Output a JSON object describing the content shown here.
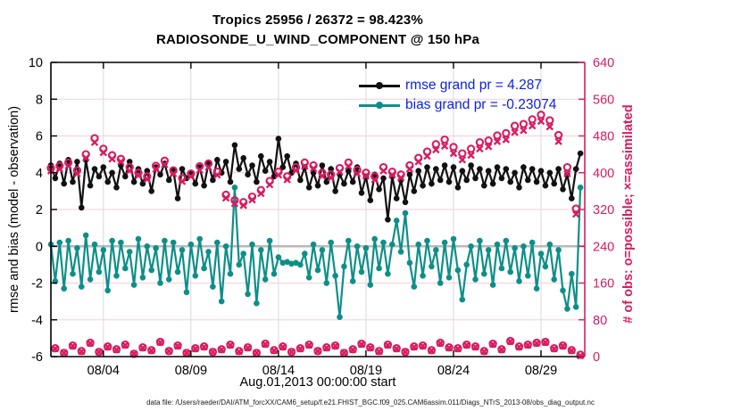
{
  "header": {
    "title_line1": "Tropics 25956 / 26372 = 98.423%",
    "title_line2": "RADIOSONDE_U_WIND_COMPONENT @ 150 hPa"
  },
  "legend": {
    "text_color": "#0a1fe8",
    "items": [
      {
        "label": "rmse grand pr = 4.287",
        "sample_color": "#111111"
      },
      {
        "label": "bias grand pr = -0.23074",
        "sample_color": "#0d8f89"
      }
    ]
  },
  "footer": {
    "data_file": "data file: /Users/raeder/DAI/ATM_forcXX/CAM6_setup/f.e21.FHIST_BGC.f09_025.CAM6assim.011/Diags_NTrS_2013-08/obs_diag_output.nc"
  },
  "colors": {
    "rmse_line": "#111111",
    "bias_line": "#0d8f89",
    "counts": "#d81b60",
    "zero_line": "#b9b9b9",
    "grid_vertical": "#d9d9d9",
    "grid_horizontal_pink": "#f6cdd9",
    "axis_black": "#000000"
  },
  "chart_data": {
    "type": "line",
    "title": "Tropics 25956 / 26372 = 98.423%",
    "subtitle": "RADIOSONDE_U_WIND_COMPONENT @ 150 hPa",
    "xlabel": "Aug.01,2013 00:00:00 start",
    "ylabel_left": "rmse and bias (model - observation)",
    "ylabel_right": "# of obs: o=possible; ×=assimilated",
    "ylim_left": [
      -6,
      10
    ],
    "ylim_right": [
      0,
      640
    ],
    "x_range_days": [
      1,
      31.5
    ],
    "left_ticks": [
      10,
      8,
      6,
      4,
      2,
      0,
      -2,
      -4,
      -6
    ],
    "right_ticks": [
      640,
      560,
      480,
      400,
      320,
      240,
      160,
      80,
      0
    ],
    "x_ticks": [
      {
        "day": 4,
        "label": "08/04"
      },
      {
        "day": 9,
        "label": "08/09"
      },
      {
        "day": 14,
        "label": "08/14"
      },
      {
        "day": 19,
        "label": "08/19"
      },
      {
        "day": 24,
        "label": "08/24"
      },
      {
        "day": 29,
        "label": "08/29"
      }
    ],
    "grid_pink_left_values": [
      8,
      6,
      4,
      2,
      -2,
      -4
    ],
    "zero_line_left_value": 0,
    "x_days_start": 1.0,
    "x_days_step": 0.25,
    "n_points": 122,
    "series": [
      {
        "name": "rmse",
        "axis": "left",
        "style": "line+dot",
        "color": "#111111",
        "grand_value": 4.287,
        "values": [
          4.4,
          3.7,
          4.5,
          3.4,
          4.7,
          3.5,
          4.6,
          2.1,
          4.7,
          3.3,
          4.2,
          3.8,
          4.3,
          3.5,
          4.0,
          3.2,
          4.4,
          3.8,
          4.6,
          3.5,
          4.2,
          3.4,
          4.1,
          3.0,
          4.3,
          3.9,
          4.5,
          3.6,
          4.1,
          2.6,
          4.2,
          3.7,
          4.0,
          3.4,
          4.3,
          3.3,
          4.5,
          3.6,
          4.7,
          4.0,
          4.6,
          3.5,
          5.5,
          4.2,
          4.8,
          3.9,
          4.4,
          3.5,
          4.9,
          4.1,
          4.6,
          3.8,
          5.85,
          4.3,
          4.9,
          4.0,
          4.5,
          3.6,
          4.3,
          3.2,
          4.0,
          3.3,
          4.4,
          3.5,
          4.2,
          3.0,
          3.9,
          3.4,
          4.1,
          3.5,
          4.3,
          2.9,
          3.8,
          2.5,
          3.9,
          3.1,
          3.7,
          1.45,
          3.8,
          2.6,
          3.6,
          2.4,
          3.9,
          3.0,
          4.1,
          3.3,
          4.3,
          3.4,
          4.2,
          3.6,
          4.4,
          3.5,
          4.3,
          3.2,
          4.1,
          3.6,
          4.4,
          3.7,
          4.2,
          3.3,
          4.1,
          3.4,
          4.3,
          3.7,
          4.2,
          3.5,
          4.0,
          3.2,
          4.3,
          3.6,
          4.2,
          3.5,
          4.1,
          3.3,
          4.0,
          3.4,
          4.2,
          3.1,
          3.9,
          2.6,
          4.2,
          5.05
        ]
      },
      {
        "name": "bias",
        "axis": "left",
        "style": "line+dot",
        "color": "#0d8f89",
        "grand_value": -0.23074,
        "values": [
          0.1,
          -1.9,
          0.2,
          -2.3,
          0.3,
          -1.5,
          -0.1,
          -2.2,
          0.6,
          -1.8,
          0.1,
          -1.4,
          -0.2,
          -2.4,
          0.3,
          -1.6,
          0.2,
          -1.2,
          -0.3,
          -2.1,
          0.4,
          -1.7,
          0.0,
          -1.3,
          -0.1,
          -2.0,
          0.3,
          -1.8,
          0.2,
          -1.4,
          -0.2,
          -2.5,
          0.1,
          -1.6,
          0.4,
          -1.2,
          -0.3,
          -2.2,
          0.2,
          -3.0,
          0.0,
          -1.5,
          3.2,
          -1.0,
          -0.4,
          -2.6,
          0.1,
          -3.1,
          -0.2,
          -1.8,
          0.3,
          -1.5,
          -0.6,
          -0.9,
          -0.85,
          -0.95,
          -0.9,
          -1.0,
          -0.4,
          -1.7,
          0.1,
          -1.3,
          -0.2,
          -2.0,
          0.2,
          -1.6,
          -3.85,
          -1.1,
          0.3,
          -1.9,
          0.0,
          -1.4,
          -0.1,
          -2.1,
          0.4,
          -1.2,
          0.2,
          -1.5,
          0.1,
          1.4,
          -0.3,
          1.8,
          -0.9,
          -2.2,
          0.1,
          -1.6,
          0.3,
          -1.1,
          -0.2,
          -2.0,
          0.2,
          -1.7,
          0.4,
          -1.3,
          -2.9,
          -1.0,
          0.0,
          -1.8,
          0.3,
          -1.5,
          -0.2,
          -2.1,
          0.1,
          -1.2,
          0.3,
          -1.4,
          -0.1,
          -1.9,
          0.0,
          -1.6,
          0.2,
          -2.3,
          -0.4,
          -1.1,
          0.1,
          -1.8,
          -0.2,
          -2.4,
          -3.4,
          -1.5,
          -3.3,
          3.2
        ]
      },
      {
        "name": "possible",
        "axis": "right",
        "style": "circle",
        "color": "#d81b60",
        "values": [
          410,
          18,
          415,
          8,
          422,
          24,
          405,
          12,
          440,
          30,
          475,
          10,
          452,
          22,
          438,
          16,
          430,
          26,
          412,
          6,
          400,
          20,
          392,
          14,
          415,
          32,
          426,
          12,
          405,
          24,
          388,
          8,
          398,
          18,
          414,
          22,
          420,
          10,
          402,
          16,
          352,
          26,
          340,
          12,
          336,
          20,
          348,
          8,
          362,
          28,
          382,
          14,
          402,
          22,
          392,
          10,
          412,
          18,
          422,
          26,
          416,
          12,
          400,
          20,
          396,
          24,
          410,
          8,
          422,
          16,
          406,
          28,
          400,
          20,
          392,
          12,
          412,
          26,
          402,
          18,
          396,
          10,
          416,
          22,
          432,
          24,
          446,
          14,
          462,
          30,
          472,
          20,
          456,
          18,
          442,
          26,
          452,
          22,
          466,
          12,
          470,
          28,
          481,
          16,
          486,
          34,
          502,
          22,
          506,
          26,
          516,
          30,
          526,
          32,
          514,
          18,
          482,
          24,
          412,
          14,
          322,
          4
        ]
      },
      {
        "name": "assimilated",
        "axis": "right",
        "style": "x",
        "color": "#d81b60",
        "values": [
          404,
          17,
          408,
          8,
          415,
          23,
          398,
          11,
          432,
          29,
          466,
          10,
          444,
          21,
          430,
          15,
          424,
          25,
          404,
          6,
          394,
          19,
          386,
          13,
          408,
          31,
          418,
          12,
          398,
          23,
          381,
          8,
          392,
          17,
          406,
          21,
          412,
          10,
          395,
          15,
          345,
          25,
          333,
          11,
          329,
          19,
          341,
          8,
          355,
          27,
          374,
          13,
          395,
          21,
          385,
          10,
          405,
          17,
          414,
          25,
          409,
          12,
          393,
          19,
          389,
          23,
          402,
          8,
          414,
          15,
          398,
          27,
          393,
          19,
          385,
          11,
          404,
          25,
          395,
          17,
          389,
          10,
          408,
          21,
          424,
          23,
          436,
          13,
          450,
          29,
          458,
          19,
          442,
          17,
          428,
          25,
          438,
          21,
          452,
          11,
          457,
          27,
          468,
          15,
          472,
          33,
          488,
          21,
          492,
          25,
          502,
          29,
          512,
          31,
          500,
          17,
          468,
          23,
          398,
          13,
          310,
          2
        ]
      }
    ]
  }
}
